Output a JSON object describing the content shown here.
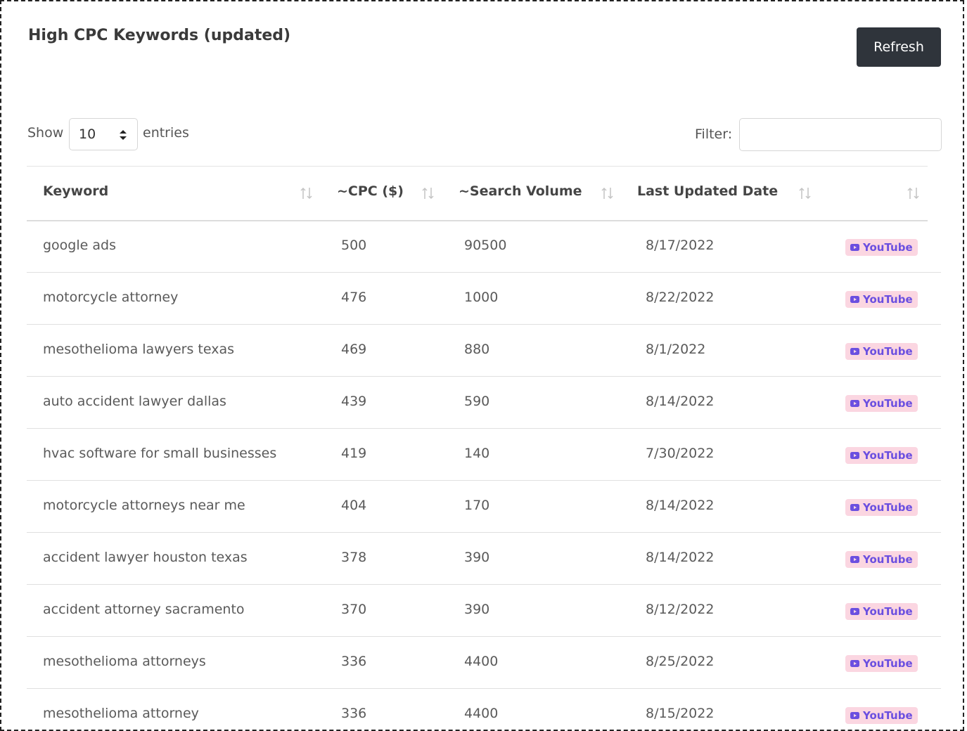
{
  "header": {
    "title": "High CPC Keywords (updated)",
    "button": "Refresh"
  },
  "controls": {
    "show_label": "Show",
    "page_size": "10",
    "entries_label": "entries",
    "filter_label": "Filter:"
  },
  "table": {
    "columns": [
      "Keyword",
      "~CPC ($)",
      "~Search Volume",
      "Last Updated Date"
    ],
    "rows": [
      [
        "google ads",
        500,
        90500,
        "8/17/2022",
        "YouTube"
      ],
      [
        "motorcycle attorney",
        476,
        1000,
        "8/22/2022",
        "YouTube"
      ],
      [
        "mesothelioma lawyers texas",
        469,
        880,
        "8/1/2022",
        "YouTube"
      ],
      [
        "auto accident lawyer dallas",
        439,
        590,
        "8/14/2022",
        "YouTube"
      ],
      [
        "hvac software for small businesses",
        419,
        140,
        "7/30/2022",
        "YouTube"
      ],
      [
        "motorcycle attorneys near me",
        404,
        170,
        "8/14/2022",
        "YouTube"
      ],
      [
        "accident lawyer houston texas",
        378,
        390,
        "8/14/2022",
        "YouTube"
      ],
      [
        "accident attorney sacramento",
        370,
        390,
        "8/12/2022",
        "YouTube"
      ],
      [
        "mesothelioma attorneys",
        336,
        4400,
        "8/25/2022",
        "YouTube"
      ],
      [
        "mesothelioma attorney",
        336,
        4400,
        "8/15/2022",
        "YouTube"
      ]
    ]
  }
}
